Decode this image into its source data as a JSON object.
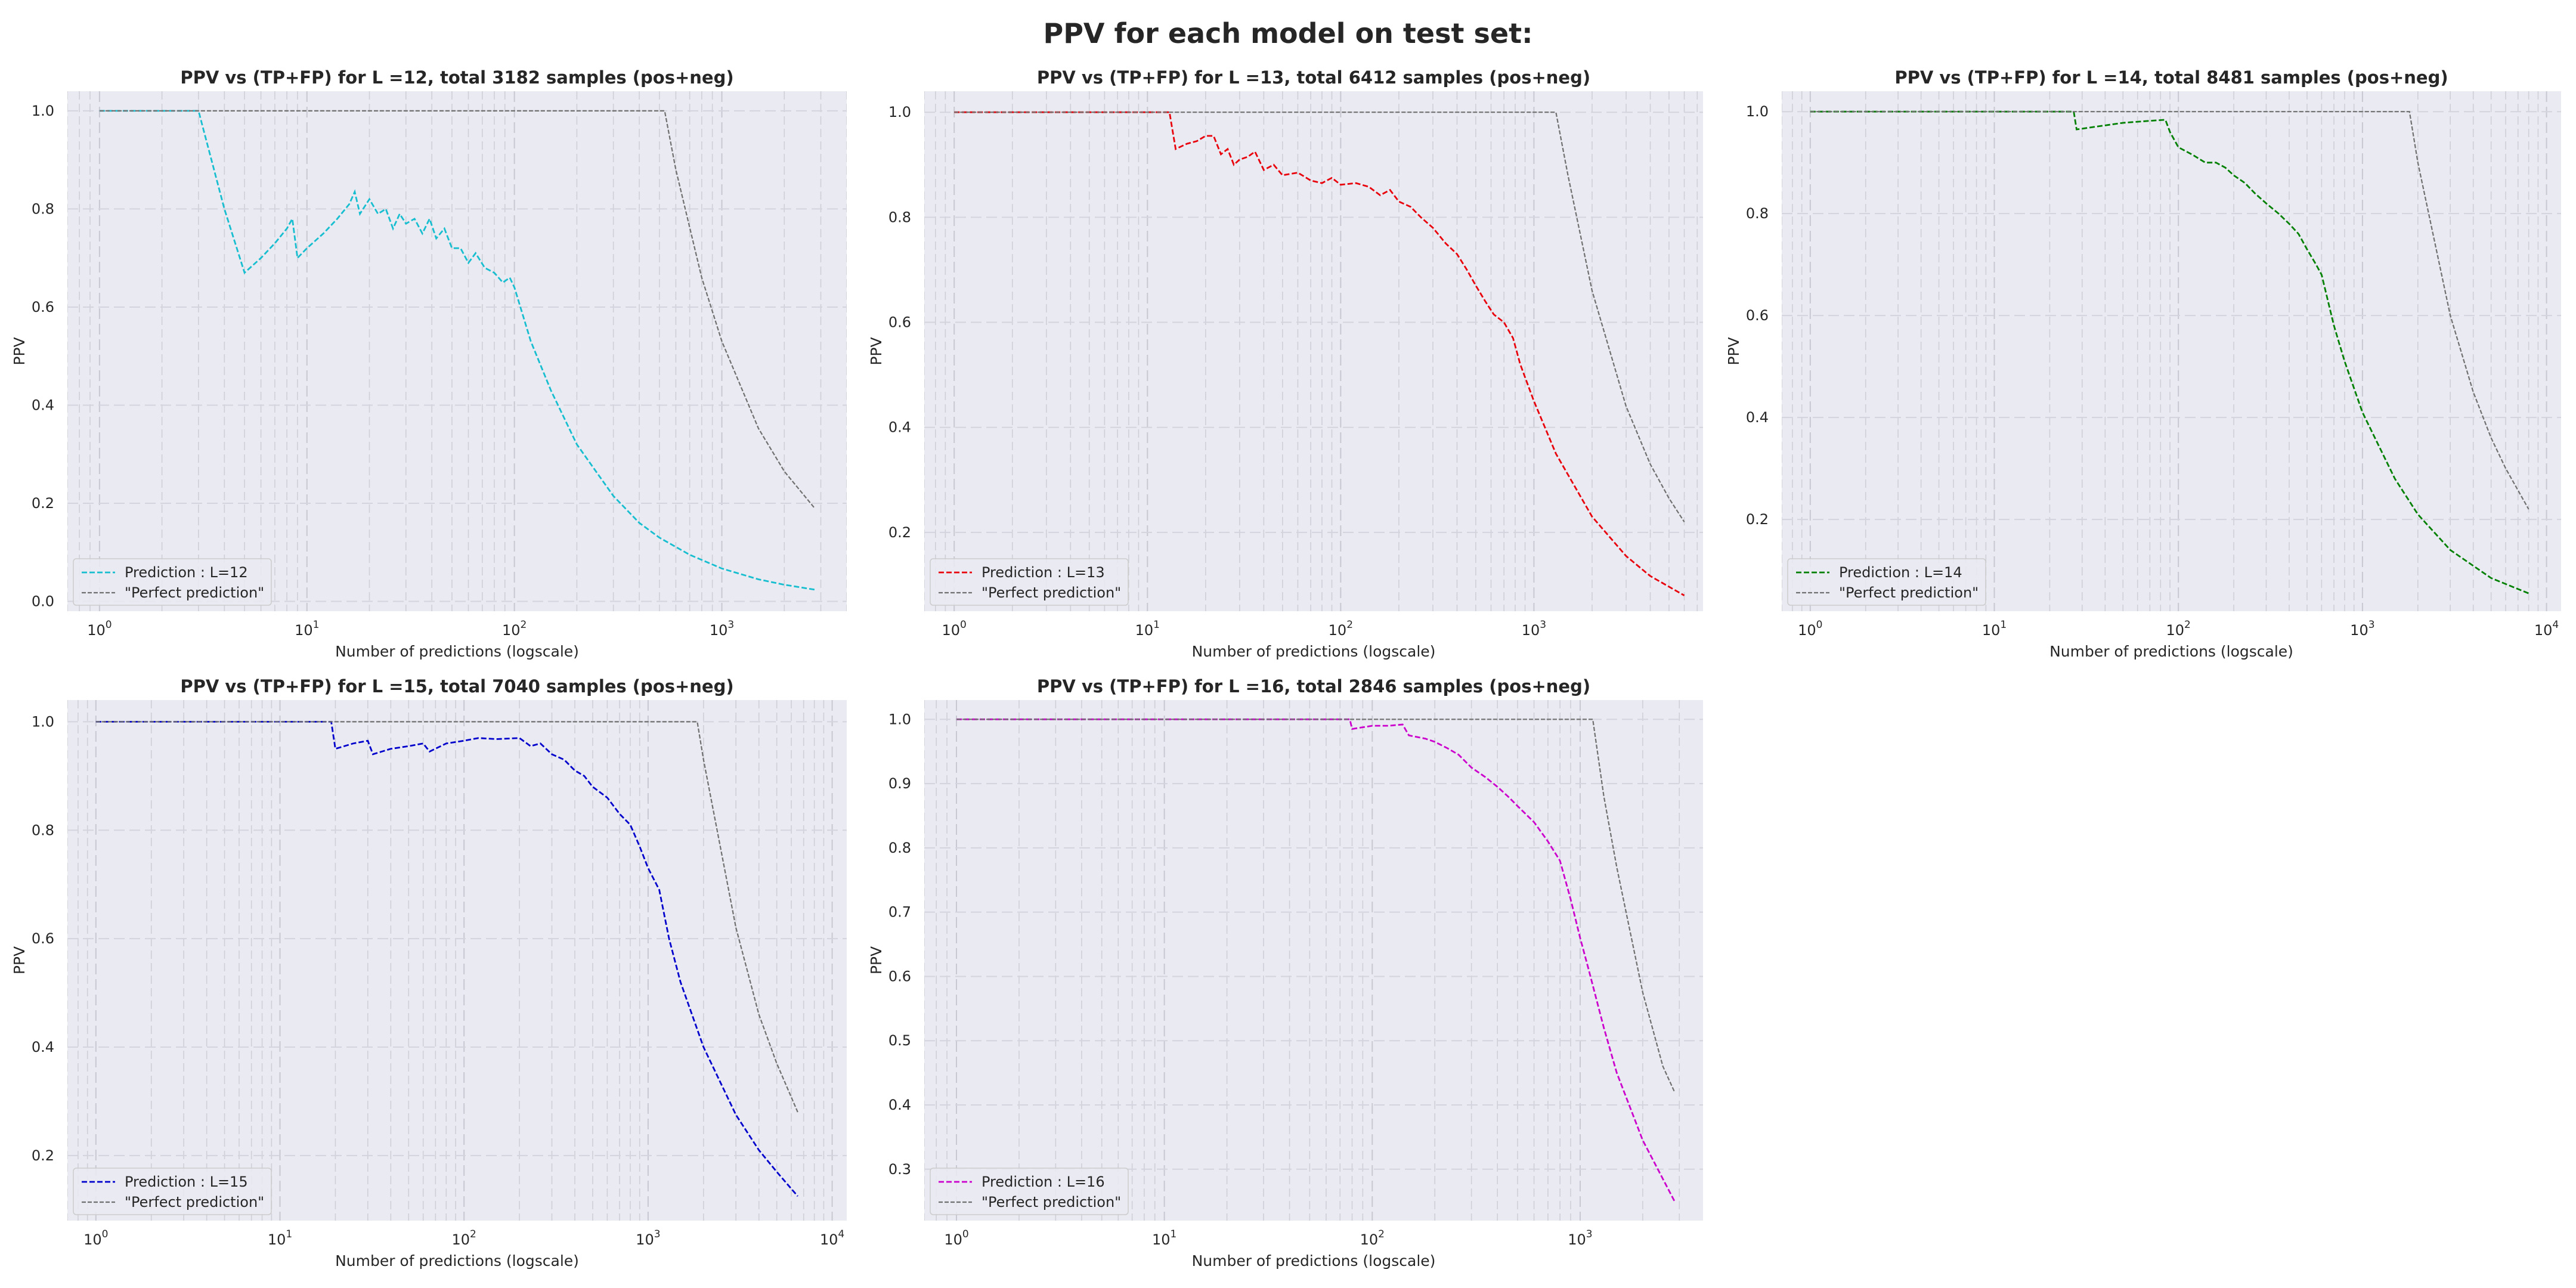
{
  "figure": {
    "suptitle": "PPV for each model on test set:"
  },
  "chart_data": [
    {
      "type": "line",
      "title": "PPV vs (TP+FP) for L =12, total 3182 samples (pos+neg)",
      "xlabel": "Number of predictions (logscale)",
      "ylabel": "PPV",
      "xscale": "log",
      "xlim": [
        0.7,
        4000
      ],
      "ylim": [
        -0.02,
        1.04
      ],
      "yticks": [
        0.0,
        0.2,
        0.4,
        0.6,
        0.8,
        1.0
      ],
      "xtick_exponents": [
        0,
        1,
        2,
        3
      ],
      "grid": true,
      "legend": "lower-left",
      "series": [
        {
          "name": "Prediction : L=12",
          "color": "#17becf",
          "style": "dashed",
          "points": [
            [
              1,
              1.0
            ],
            [
              2,
              1.0
            ],
            [
              3,
              1.0
            ],
            [
              4,
              0.8
            ],
            [
              5,
              0.67
            ],
            [
              6,
              0.7
            ],
            [
              7,
              0.73
            ],
            [
              8,
              0.76
            ],
            [
              8.5,
              0.78
            ],
            [
              9,
              0.7
            ],
            [
              10,
              0.72
            ],
            [
              12,
              0.75
            ],
            [
              14,
              0.78
            ],
            [
              16,
              0.81
            ],
            [
              17,
              0.835
            ],
            [
              18,
              0.79
            ],
            [
              20,
              0.82
            ],
            [
              22,
              0.79
            ],
            [
              24,
              0.8
            ],
            [
              26,
              0.76
            ],
            [
              28,
              0.79
            ],
            [
              30,
              0.77
            ],
            [
              33,
              0.78
            ],
            [
              36,
              0.75
            ],
            [
              39,
              0.78
            ],
            [
              42,
              0.74
            ],
            [
              46,
              0.76
            ],
            [
              50,
              0.72
            ],
            [
              55,
              0.72
            ],
            [
              60,
              0.69
            ],
            [
              65,
              0.71
            ],
            [
              72,
              0.68
            ],
            [
              80,
              0.67
            ],
            [
              88,
              0.65
            ],
            [
              95,
              0.66
            ],
            [
              100,
              0.64
            ],
            [
              120,
              0.53
            ],
            [
              150,
              0.43
            ],
            [
              200,
              0.32
            ],
            [
              300,
              0.215
            ],
            [
              400,
              0.16
            ],
            [
              500,
              0.13
            ],
            [
              700,
              0.095
            ],
            [
              1000,
              0.067
            ],
            [
              1500,
              0.045
            ],
            [
              2000,
              0.034
            ],
            [
              2800,
              0.024
            ]
          ]
        },
        {
          "name": "\"Perfect prediction\"",
          "color": "#707070",
          "style": "dashed",
          "points": [
            [
              1,
              1.0
            ],
            [
              530,
              1.0
            ],
            [
              600,
              0.88
            ],
            [
              800,
              0.66
            ],
            [
              1000,
              0.53
            ],
            [
              1500,
              0.353
            ],
            [
              2000,
              0.265
            ],
            [
              2800,
              0.19
            ]
          ]
        }
      ]
    },
    {
      "type": "line",
      "title": "PPV vs (TP+FP) for L =13, total 6412 samples (pos+neg)",
      "xlabel": "Number of predictions (logscale)",
      "ylabel": "PPV",
      "xscale": "log",
      "xlim": [
        0.7,
        7500
      ],
      "ylim": [
        0.05,
        1.04
      ],
      "yticks": [
        0.2,
        0.4,
        0.6,
        0.8,
        1.0
      ],
      "xtick_exponents": [
        0,
        1,
        2,
        3
      ],
      "grid": true,
      "legend": "lower-left",
      "series": [
        {
          "name": "Prediction : L=13",
          "color": "#e8000b",
          "style": "dashed",
          "points": [
            [
              1,
              1.0
            ],
            [
              13,
              1.0
            ],
            [
              14,
              0.93
            ],
            [
              16,
              0.94
            ],
            [
              18,
              0.945
            ],
            [
              20,
              0.955
            ],
            [
              22,
              0.955
            ],
            [
              24,
              0.92
            ],
            [
              26,
              0.93
            ],
            [
              28,
              0.9
            ],
            [
              30,
              0.91
            ],
            [
              33,
              0.915
            ],
            [
              36,
              0.925
            ],
            [
              40,
              0.89
            ],
            [
              45,
              0.9
            ],
            [
              50,
              0.88
            ],
            [
              60,
              0.885
            ],
            [
              70,
              0.87
            ],
            [
              80,
              0.865
            ],
            [
              90,
              0.875
            ],
            [
              100,
              0.862
            ],
            [
              120,
              0.865
            ],
            [
              140,
              0.858
            ],
            [
              160,
              0.842
            ],
            [
              180,
              0.852
            ],
            [
              200,
              0.83
            ],
            [
              230,
              0.82
            ],
            [
              260,
              0.8
            ],
            [
              300,
              0.78
            ],
            [
              350,
              0.75
            ],
            [
              400,
              0.73
            ],
            [
              450,
              0.7
            ],
            [
              500,
              0.67
            ],
            [
              560,
              0.64
            ],
            [
              620,
              0.615
            ],
            [
              700,
              0.6
            ],
            [
              780,
              0.57
            ],
            [
              850,
              0.52
            ],
            [
              1000,
              0.45
            ],
            [
              1300,
              0.35
            ],
            [
              2000,
              0.23
            ],
            [
              3000,
              0.155
            ],
            [
              4000,
              0.117
            ],
            [
              6000,
              0.08
            ]
          ]
        },
        {
          "name": "\"Perfect prediction\"",
          "color": "#707070",
          "style": "dashed",
          "points": [
            [
              1,
              1.0
            ],
            [
              1300,
              1.0
            ],
            [
              1500,
              0.88
            ],
            [
              2000,
              0.66
            ],
            [
              3000,
              0.44
            ],
            [
              4000,
              0.33
            ],
            [
              5000,
              0.265
            ],
            [
              6000,
              0.22
            ]
          ]
        }
      ]
    },
    {
      "type": "line",
      "title": "PPV vs (TP+FP) for L =14, total 8481 samples (pos+neg)",
      "xlabel": "Number of predictions (logscale)",
      "ylabel": "PPV",
      "xscale": "log",
      "xlim": [
        0.7,
        12000
      ],
      "ylim": [
        0.02,
        1.04
      ],
      "yticks": [
        0.2,
        0.4,
        0.6,
        0.8,
        1.0
      ],
      "xtick_exponents": [
        0,
        1,
        2,
        3,
        4
      ],
      "grid": true,
      "legend": "lower-left",
      "series": [
        {
          "name": "Prediction : L=14",
          "color": "#008000",
          "style": "dashed",
          "points": [
            [
              1,
              1.0
            ],
            [
              27,
              1.0
            ],
            [
              28,
              0.965
            ],
            [
              35,
              0.97
            ],
            [
              50,
              0.978
            ],
            [
              70,
              0.982
            ],
            [
              85,
              0.984
            ],
            [
              90,
              0.96
            ],
            [
              100,
              0.93
            ],
            [
              120,
              0.915
            ],
            [
              140,
              0.9
            ],
            [
              160,
              0.9
            ],
            [
              180,
              0.89
            ],
            [
              200,
              0.875
            ],
            [
              230,
              0.86
            ],
            [
              260,
              0.84
            ],
            [
              300,
              0.82
            ],
            [
              350,
              0.8
            ],
            [
              400,
              0.78
            ],
            [
              450,
              0.76
            ],
            [
              500,
              0.73
            ],
            [
              560,
              0.7
            ],
            [
              600,
              0.68
            ],
            [
              700,
              0.58
            ],
            [
              800,
              0.51
            ],
            [
              1000,
              0.41
            ],
            [
              1500,
              0.28
            ],
            [
              2000,
              0.21
            ],
            [
              3000,
              0.14
            ],
            [
              5000,
              0.085
            ],
            [
              8000,
              0.055
            ]
          ]
        },
        {
          "name": "\"Perfect prediction\"",
          "color": "#707070",
          "style": "dashed",
          "points": [
            [
              1,
              1.0
            ],
            [
              1800,
              1.0
            ],
            [
              2000,
              0.9
            ],
            [
              3000,
              0.6
            ],
            [
              4000,
              0.45
            ],
            [
              5000,
              0.36
            ],
            [
              6000,
              0.3
            ],
            [
              8000,
              0.22
            ]
          ]
        }
      ]
    },
    {
      "type": "line",
      "title": "PPV vs (TP+FP) for L =15, total 7040 samples (pos+neg)",
      "xlabel": "Number of predictions (logscale)",
      "ylabel": "PPV",
      "xscale": "log",
      "xlim": [
        0.7,
        12000
      ],
      "ylim": [
        0.08,
        1.04
      ],
      "yticks": [
        0.2,
        0.4,
        0.6,
        0.8,
        1.0
      ],
      "xtick_exponents": [
        0,
        1,
        2,
        3,
        4
      ],
      "grid": true,
      "legend": "lower-left",
      "series": [
        {
          "name": "Prediction : L=15",
          "color": "#0000cc",
          "style": "dashed",
          "points": [
            [
              1,
              1.0
            ],
            [
              19,
              1.0
            ],
            [
              20,
              0.95
            ],
            [
              25,
              0.96
            ],
            [
              30,
              0.965
            ],
            [
              32,
              0.94
            ],
            [
              40,
              0.95
            ],
            [
              50,
              0.955
            ],
            [
              60,
              0.96
            ],
            [
              65,
              0.945
            ],
            [
              80,
              0.96
            ],
            [
              100,
              0.965
            ],
            [
              120,
              0.97
            ],
            [
              150,
              0.968
            ],
            [
              200,
              0.97
            ],
            [
              230,
              0.955
            ],
            [
              260,
              0.96
            ],
            [
              300,
              0.94
            ],
            [
              350,
              0.93
            ],
            [
              400,
              0.91
            ],
            [
              450,
              0.9
            ],
            [
              500,
              0.88
            ],
            [
              600,
              0.86
            ],
            [
              700,
              0.83
            ],
            [
              800,
              0.81
            ],
            [
              900,
              0.77
            ],
            [
              1000,
              0.73
            ],
            [
              1150,
              0.69
            ],
            [
              1300,
              0.6
            ],
            [
              1500,
              0.52
            ],
            [
              2000,
              0.4
            ],
            [
              3000,
              0.275
            ],
            [
              4000,
              0.21
            ],
            [
              5000,
              0.17
            ],
            [
              6500,
              0.125
            ]
          ]
        },
        {
          "name": "\"Perfect prediction\"",
          "color": "#707070",
          "style": "dashed",
          "points": [
            [
              1,
              1.0
            ],
            [
              1850,
              1.0
            ],
            [
              2000,
              0.93
            ],
            [
              3000,
              0.62
            ],
            [
              4000,
              0.46
            ],
            [
              5000,
              0.37
            ],
            [
              6500,
              0.28
            ]
          ]
        }
      ]
    },
    {
      "type": "line",
      "title": "PPV vs (TP+FP) for L =16, total 2846 samples (pos+neg)",
      "xlabel": "Number of predictions (logscale)",
      "ylabel": "PPV",
      "xscale": "log",
      "xlim": [
        0.7,
        3900
      ],
      "ylim": [
        0.22,
        1.03
      ],
      "yticks": [
        0.3,
        0.4,
        0.5,
        0.6,
        0.7,
        0.8,
        0.9,
        1.0
      ],
      "xtick_exponents": [
        0,
        1,
        2,
        3
      ],
      "grid": true,
      "legend": "lower-left",
      "series": [
        {
          "name": "Prediction : L=16",
          "color": "#cc00cc",
          "style": "dashed",
          "points": [
            [
              1,
              1.0
            ],
            [
              78,
              1.0
            ],
            [
              80,
              0.985
            ],
            [
              100,
              0.99
            ],
            [
              120,
              0.99
            ],
            [
              140,
              0.992
            ],
            [
              150,
              0.975
            ],
            [
              180,
              0.97
            ],
            [
              200,
              0.965
            ],
            [
              230,
              0.955
            ],
            [
              260,
              0.945
            ],
            [
              300,
              0.925
            ],
            [
              350,
              0.91
            ],
            [
              400,
              0.895
            ],
            [
              450,
              0.88
            ],
            [
              500,
              0.865
            ],
            [
              600,
              0.84
            ],
            [
              700,
              0.81
            ],
            [
              800,
              0.78
            ],
            [
              900,
              0.72
            ],
            [
              1000,
              0.66
            ],
            [
              1100,
              0.61
            ],
            [
              1300,
              0.52
            ],
            [
              1500,
              0.45
            ],
            [
              2000,
              0.345
            ],
            [
              2846,
              0.25
            ]
          ]
        },
        {
          "name": "\"Perfect prediction\"",
          "color": "#707070",
          "style": "dashed",
          "points": [
            [
              1,
              1.0
            ],
            [
              1150,
              1.0
            ],
            [
              1300,
              0.88
            ],
            [
              1500,
              0.77
            ],
            [
              2000,
              0.575
            ],
            [
              2500,
              0.46
            ],
            [
              2846,
              0.42
            ]
          ]
        }
      ]
    }
  ]
}
